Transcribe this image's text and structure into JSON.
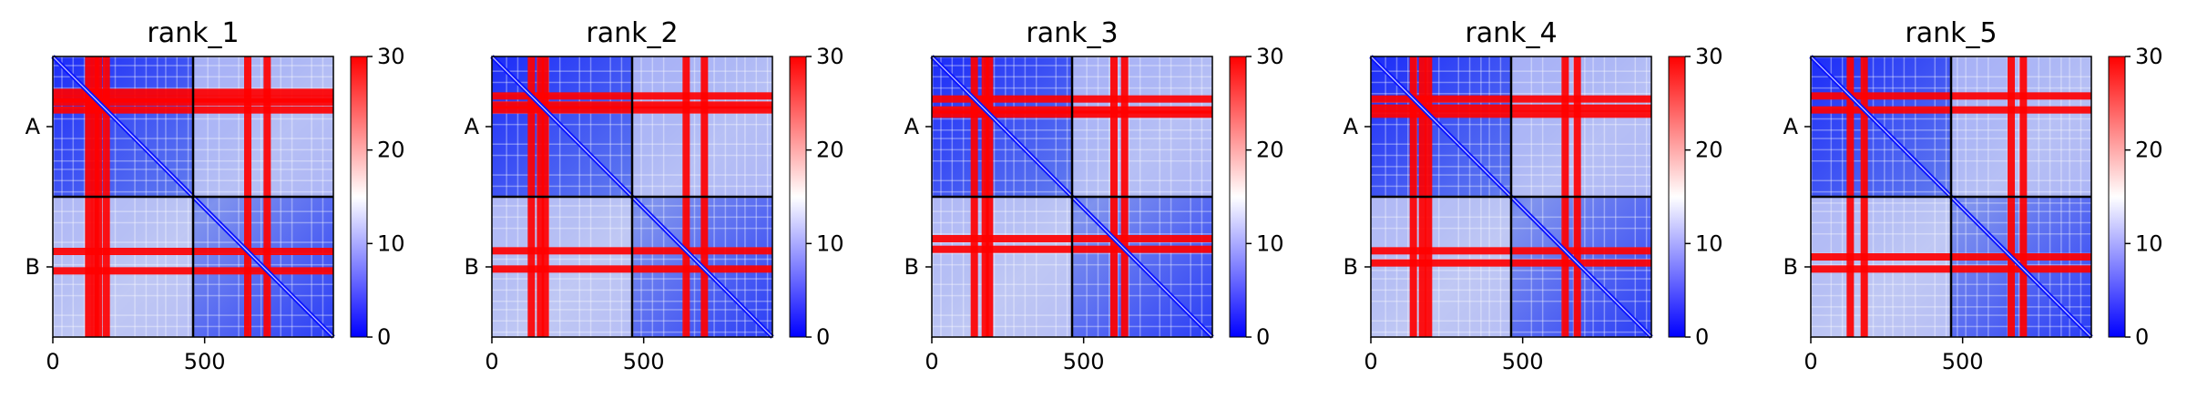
{
  "figure": {
    "background": "#ffffff"
  },
  "chart_data": [
    {
      "type": "heatmap",
      "title": "rank_1",
      "x_ticks": [
        0,
        500
      ],
      "y_tick_labels": [
        "A",
        "B"
      ],
      "chain_boundary": 462,
      "sequence_length": 924,
      "colorbar": {
        "ticks": [
          0,
          10,
          20,
          30
        ],
        "range": [
          0,
          30
        ],
        "colormap": "bwr"
      },
      "colors": {
        "low": "#0000ff",
        "mid": "#ffffff",
        "high": "#ff0000"
      },
      "high_error_bands": [
        118,
        140,
        150,
        176,
        642,
        706
      ]
    },
    {
      "type": "heatmap",
      "title": "rank_2",
      "x_ticks": [
        0,
        500
      ],
      "y_tick_labels": [
        "A",
        "B"
      ],
      "chain_boundary": 462,
      "sequence_length": 924,
      "colorbar": {
        "ticks": [
          0,
          10,
          20,
          30
        ],
        "range": [
          0,
          30
        ],
        "colormap": "bwr"
      },
      "colors": {
        "low": "#0000ff",
        "mid": "#ffffff",
        "high": "#ff0000"
      },
      "high_error_bands": [
        130,
        160,
        176,
        640,
        700
      ]
    },
    {
      "type": "heatmap",
      "title": "rank_3",
      "x_ticks": [
        0,
        500
      ],
      "y_tick_labels": [
        "A",
        "B"
      ],
      "chain_boundary": 462,
      "sequence_length": 924,
      "colorbar": {
        "ticks": [
          0,
          10,
          20,
          30
        ],
        "range": [
          0,
          30
        ],
        "colormap": "bwr"
      },
      "colors": {
        "low": "#0000ff",
        "mid": "#ffffff",
        "high": "#ff0000"
      },
      "high_error_bands": [
        140,
        176,
        190,
        600,
        635
      ]
    },
    {
      "type": "heatmap",
      "title": "rank_4",
      "x_ticks": [
        0,
        500
      ],
      "y_tick_labels": [
        "A",
        "B"
      ],
      "chain_boundary": 462,
      "sequence_length": 924,
      "colorbar": {
        "ticks": [
          0,
          10,
          20,
          30
        ],
        "range": [
          0,
          30
        ],
        "colormap": "bwr"
      },
      "colors": {
        "low": "#0000ff",
        "mid": "#ffffff",
        "high": "#ff0000"
      },
      "high_error_bands": [
        140,
        170,
        190,
        640,
        680
      ]
    },
    {
      "type": "heatmap",
      "title": "rank_5",
      "x_ticks": [
        0,
        500
      ],
      "y_tick_labels": [
        "A",
        "B"
      ],
      "chain_boundary": 462,
      "sequence_length": 924,
      "colorbar": {
        "ticks": [
          0,
          10,
          20,
          30
        ],
        "range": [
          0,
          30
        ],
        "colormap": "bwr"
      },
      "colors": {
        "low": "#0000ff",
        "mid": "#ffffff",
        "high": "#ff0000"
      },
      "high_error_bands": [
        130,
        176,
        660,
        700
      ]
    }
  ]
}
